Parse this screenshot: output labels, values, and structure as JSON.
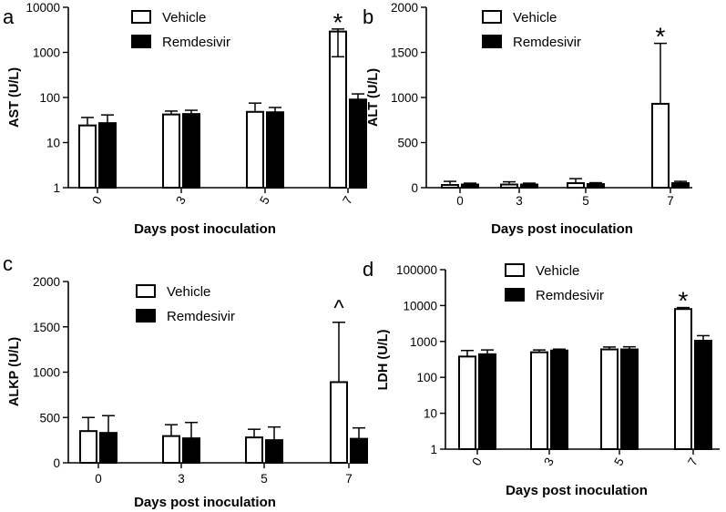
{
  "chart_data": [
    {
      "panel_letter": "a",
      "type": "bar",
      "scale": "log",
      "ylabel": "AST (U/L)",
      "xlabel": "Days post inoculation",
      "categories": [
        "0",
        "3",
        "5",
        "7"
      ],
      "ylim": [
        1,
        10000
      ],
      "yticks": [
        "1",
        "10",
        "100",
        "1000",
        "10000"
      ],
      "tick_values": [
        1,
        10,
        100,
        1000,
        10000
      ],
      "tick_label_angle": "rotated",
      "legend_position": "top-center",
      "series": [
        {
          "name": "Vehicle",
          "values": [
            24,
            42,
            48,
            2900
          ],
          "errors": [
            36,
            50,
            75,
            3300
          ],
          "lower": [
            null,
            null,
            null,
            800
          ]
        },
        {
          "name": "Remdesivir",
          "values": [
            27,
            43,
            47,
            90
          ],
          "errors": [
            41,
            52,
            60,
            120
          ],
          "lower": [
            null,
            null,
            null,
            null
          ]
        }
      ],
      "annotations": [
        {
          "category": "7",
          "series": "Vehicle",
          "text": "*"
        }
      ]
    },
    {
      "panel_letter": "b",
      "type": "bar",
      "scale": "linear",
      "ylabel": "ALT (U/L)",
      "xlabel": "Days post inoculation",
      "categories": [
        "0",
        "3",
        "5",
        "7"
      ],
      "ylim": [
        0,
        2000
      ],
      "yticks": [
        "0",
        "500",
        "1000",
        "1500",
        "2000"
      ],
      "tick_values": [
        0,
        500,
        1000,
        1500,
        2000
      ],
      "tick_label_angle": "horizontal",
      "legend_position": "top-center",
      "series": [
        {
          "name": "Vehicle",
          "values": [
            30,
            35,
            50,
            930
          ],
          "errors": [
            70,
            65,
            100,
            1600
          ],
          "lower": [
            null,
            null,
            null,
            null
          ]
        },
        {
          "name": "Remdesivir",
          "values": [
            35,
            35,
            40,
            50
          ],
          "errors": [
            50,
            50,
            55,
            70
          ],
          "lower": [
            null,
            null,
            null,
            null
          ]
        }
      ],
      "annotations": [
        {
          "category": "7",
          "series": "Vehicle",
          "text": "*"
        }
      ]
    },
    {
      "panel_letter": "c",
      "type": "bar",
      "scale": "linear",
      "ylabel": "ALKP (U/L)",
      "xlabel": "Days post inoculation",
      "categories": [
        "0",
        "3",
        "5",
        "7"
      ],
      "ylim": [
        0,
        2000
      ],
      "yticks": [
        "0",
        "500",
        "1000",
        "1500",
        "2000"
      ],
      "tick_values": [
        0,
        500,
        1000,
        1500,
        2000
      ],
      "tick_label_angle": "horizontal",
      "legend_position": "top-center",
      "series": [
        {
          "name": "Vehicle",
          "values": [
            350,
            295,
            280,
            890
          ],
          "errors": [
            500,
            420,
            370,
            1550
          ],
          "lower": [
            null,
            null,
            null,
            null
          ]
        },
        {
          "name": "Remdesivir",
          "values": [
            330,
            270,
            250,
            265
          ],
          "errors": [
            520,
            445,
            395,
            385
          ],
          "lower": [
            null,
            null,
            null,
            null
          ]
        }
      ],
      "annotations": [
        {
          "category": "7",
          "series": "Vehicle",
          "text": "^"
        }
      ]
    },
    {
      "panel_letter": "d",
      "type": "bar",
      "scale": "log",
      "ylabel": "LDH (U/L)",
      "xlabel": "Days post inoculation",
      "categories": [
        "0",
        "3",
        "5",
        "7"
      ],
      "ylim": [
        1,
        100000
      ],
      "yticks": [
        "1",
        "10",
        "100",
        "1000",
        "10000",
        "100000"
      ],
      "tick_values": [
        1,
        10,
        100,
        1000,
        10000,
        100000
      ],
      "tick_label_angle": "rotated",
      "legend_position": "top-center",
      "series": [
        {
          "name": "Vehicle",
          "values": [
            380,
            500,
            600,
            8000
          ],
          "errors": [
            560,
            580,
            700,
            8800
          ],
          "lower": [
            null,
            null,
            null,
            null
          ]
        },
        {
          "name": "Remdesivir",
          "values": [
            440,
            560,
            600,
            1050
          ],
          "errors": [
            580,
            610,
            710,
            1450
          ],
          "lower": [
            null,
            null,
            null,
            null
          ]
        }
      ],
      "annotations": [
        {
          "category": "7",
          "series": "Vehicle",
          "text": "*"
        }
      ]
    }
  ]
}
